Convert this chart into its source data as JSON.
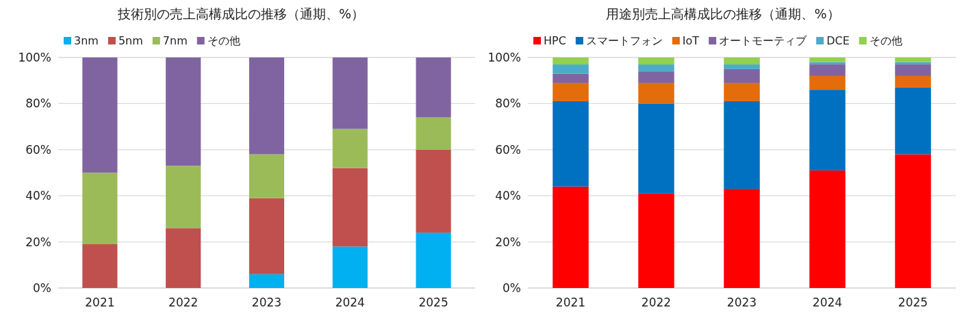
{
  "chart_data": [
    {
      "type": "bar",
      "stacked": true,
      "title": "技術別の売上高構成比の推移（通期、%）",
      "categories": [
        "2021",
        "2022",
        "2023",
        "2024",
        "2025"
      ],
      "ylim": [
        0,
        100
      ],
      "yticks": [
        {
          "value": 0,
          "label": "0%"
        },
        {
          "value": 20,
          "label": "20%"
        },
        {
          "value": 40,
          "label": "40%"
        },
        {
          "value": 60,
          "label": "60%"
        },
        {
          "value": 80,
          "label": "80%"
        },
        {
          "value": 100,
          "label": "100%"
        }
      ],
      "grid": "y",
      "legend": "top left",
      "series": [
        {
          "name": "3nm",
          "color": "#00b0f0",
          "values": [
            0,
            0,
            6,
            18,
            24
          ]
        },
        {
          "name": "5nm",
          "color": "#c0504d",
          "values": [
            19,
            26,
            33,
            34,
            36
          ]
        },
        {
          "name": "7nm",
          "color": "#9bbb59",
          "values": [
            31,
            27,
            19,
            17,
            14
          ]
        },
        {
          "name": "その他",
          "color": "#8064a2",
          "values": [
            50,
            47,
            42,
            31,
            26
          ]
        }
      ]
    },
    {
      "type": "bar",
      "stacked": true,
      "title": "用途別売上高構成比の推移（通期、%）",
      "categories": [
        "2021",
        "2022",
        "2023",
        "2024",
        "2025"
      ],
      "ylim": [
        0,
        100
      ],
      "yticks": [
        {
          "value": 0,
          "label": "0%"
        },
        {
          "value": 20,
          "label": "20%"
        },
        {
          "value": 40,
          "label": "40%"
        },
        {
          "value": 60,
          "label": "60%"
        },
        {
          "value": 80,
          "label": "80%"
        },
        {
          "value": 100,
          "label": "100%"
        }
      ],
      "grid": "y",
      "legend": "top left",
      "series": [
        {
          "name": "HPC",
          "color": "#ff0000",
          "values": [
            44,
            41,
            43,
            51,
            58
          ]
        },
        {
          "name": "スマートフォン",
          "color": "#0070c0",
          "values": [
            37,
            39,
            38,
            35,
            29
          ]
        },
        {
          "name": "IoT",
          "color": "#e46c0a",
          "values": [
            8,
            9,
            8,
            6,
            5
          ]
        },
        {
          "name": "オートモーティブ",
          "color": "#8064a2",
          "values": [
            4,
            5,
            6,
            5,
            5
          ]
        },
        {
          "name": "DCE",
          "color": "#4bacc6",
          "values": [
            4,
            3,
            2,
            1,
            1
          ]
        },
        {
          "name": "その他",
          "color": "#92d050",
          "values": [
            3,
            3,
            3,
            2,
            2
          ]
        }
      ]
    }
  ]
}
